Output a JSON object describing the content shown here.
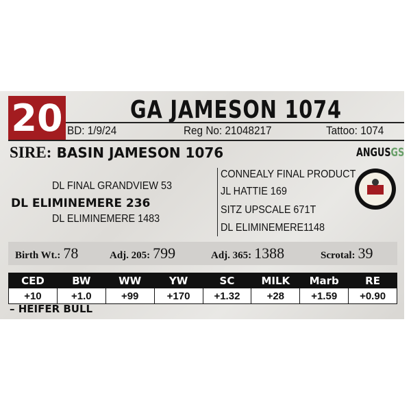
{
  "lot": "20",
  "title": "GA JAMESON 1074",
  "info": [
    {
      "label": "BD:",
      "value": "1/9/24"
    },
    {
      "label": "Reg No:",
      "value": "21048217"
    },
    {
      "label": "Tattoo:",
      "value": "1074"
    }
  ],
  "sire": {
    "label": "SIRE:",
    "name": "BASIN JAMESON 1076"
  },
  "logo": {
    "text": "ANGUS",
    "suffix": "GS"
  },
  "pedigree_left": [
    "DL FINAL GRANDVIEW 53",
    "DL ELIMINEMERE 236",
    "DL ELIMINEMERE 1483"
  ],
  "pedigree_right": [
    "CONNEALY FINAL PRODUCT",
    "JL HATTIE 169",
    "SITZ UPSCALE 671T",
    "DL ELIMINEMERE1148"
  ],
  "stats": [
    {
      "label": "Birth Wt.:",
      "value": "78"
    },
    {
      "label": "Adj. 205:",
      "value": "799"
    },
    {
      "label": "Adj. 365:",
      "value": "1388"
    },
    {
      "label": "Scrotal:",
      "value": "39"
    }
  ],
  "epd": {
    "headers": [
      "CED",
      "BW",
      "WW",
      "YW",
      "SC",
      "MILK",
      "Marb",
      "RE"
    ],
    "values": [
      "+10",
      "+1.0",
      "+99",
      "+170",
      "+1.32",
      "+28",
      "+1.59",
      "+0.90"
    ]
  },
  "footer": "– HEIFER BULL"
}
